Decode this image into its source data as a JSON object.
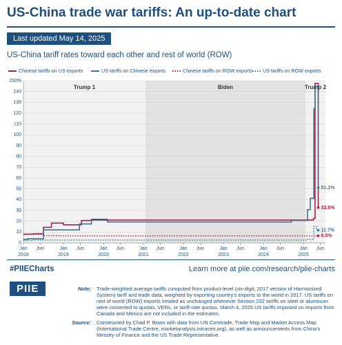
{
  "header": {
    "title": "US-China trade war tariffs: An up-to-date chart",
    "updated": "Last updated May 14, 2025"
  },
  "chart_data": {
    "type": "line",
    "step": true,
    "subtitle": "US-China tariff rates toward each other and rest of world (ROW)",
    "xlim": [
      2018,
      2025.55
    ],
    "ylim": [
      0,
      150
    ],
    "yticks": [
      0,
      10,
      20,
      30,
      40,
      50,
      60,
      70,
      80,
      90,
      100,
      110,
      120,
      130,
      140,
      {
        "value": 150,
        "label": "150%"
      }
    ],
    "xticks": [
      {
        "value": 2018,
        "label": "Jan"
      },
      {
        "value": 2018.42,
        "label": "Jun"
      },
      {
        "value": 2019,
        "label": "Jan"
      },
      {
        "value": 2019.42,
        "label": "Jun"
      },
      {
        "value": 2020,
        "label": "Jan"
      },
      {
        "value": 2020.42,
        "label": "Jun"
      },
      {
        "value": 2021,
        "label": "Jan"
      },
      {
        "value": 2021.42,
        "label": "Jun"
      },
      {
        "value": 2022,
        "label": "Jan"
      },
      {
        "value": 2022.42,
        "label": "Jun"
      },
      {
        "value": 2023,
        "label": "Jan"
      },
      {
        "value": 2023.42,
        "label": "Jun"
      },
      {
        "value": 2024,
        "label": "Jan"
      },
      {
        "value": 2024.42,
        "label": "Jun"
      },
      {
        "value": 2025,
        "label": "Jan"
      },
      {
        "value": 2025.42,
        "label": "Jun"
      }
    ],
    "xtick_years": [
      2018,
      2019,
      2020,
      2021,
      2022,
      2023,
      2024,
      2025
    ],
    "grid": true,
    "periods": [
      {
        "label": "Trump 1",
        "start": 2018,
        "end": 2021.05,
        "color": "#f2f2f2"
      },
      {
        "label": "Biden",
        "start": 2021.05,
        "end": 2025.05,
        "color": "#e2e2e2"
      },
      {
        "label": "Trump 2",
        "start": 2025.05,
        "end": 2025.55,
        "color": "#f2f2f2"
      }
    ],
    "series": [
      {
        "name": "Chinese tariffs on US exports",
        "color": "#a3214b",
        "dash": false,
        "x": [
          2018,
          2018.25,
          2018.25,
          2018.5,
          2018.5,
          2018.7,
          2018.7,
          2019.0,
          2019.0,
          2019.45,
          2019.45,
          2019.7,
          2019.7,
          2020.1,
          2020.1,
          2025.1,
          2025.1,
          2025.25,
          2025.25,
          2025.29,
          2025.29,
          2025.37,
          2025.37
        ],
        "values": [
          8.0,
          8.0,
          8.4,
          8.4,
          14.4,
          14.4,
          18.3,
          18.3,
          16.7,
          16.7,
          20.7,
          20.7,
          21.8,
          21.8,
          21.1,
          21.1,
          21.2,
          21.2,
          22.6,
          22.6,
          147.6,
          147.6,
          32.6
        ],
        "value_labels": [
          null,
          null,
          null,
          null,
          null,
          null,
          null,
          null,
          null,
          null,
          null,
          null,
          null,
          null,
          null,
          null,
          null,
          null,
          null,
          null,
          null,
          null,
          "32.6%"
        ]
      },
      {
        "name": "US tariffs on Chinese exports",
        "color": "#3b7690",
        "dash": false,
        "x": [
          2018,
          2018.1,
          2018.1,
          2018.5,
          2018.5,
          2019.4,
          2019.4,
          2019.7,
          2019.7,
          2020.1,
          2020.1,
          2024.7,
          2024.7,
          2025.1,
          2025.1,
          2025.17,
          2025.17,
          2025.26,
          2025.26,
          2025.29,
          2025.29,
          2025.37,
          2025.37
        ],
        "values": [
          3.1,
          3.1,
          3.8,
          3.8,
          12.0,
          12.0,
          17.5,
          17.5,
          21.0,
          21.0,
          19.3,
          19.3,
          20.8,
          20.8,
          30.8,
          30.8,
          41.2,
          41.2,
          124.1,
          124.1,
          145.0,
          145.0,
          51.1
        ],
        "value_labels": [
          null,
          null,
          null,
          null,
          null,
          null,
          null,
          null,
          null,
          null,
          null,
          null,
          null,
          null,
          null,
          null,
          null,
          null,
          null,
          null,
          null,
          null,
          "51.1%"
        ]
      },
      {
        "name": "Chinese tariffs on ROW exports",
        "color": "#a3214b",
        "dash": true,
        "x": [
          2018,
          2018.5,
          2018.5,
          2018.9,
          2018.9,
          2025.37
        ],
        "values": [
          8.0,
          8.0,
          6.7,
          6.7,
          6.5,
          6.5
        ],
        "value_labels": [
          null,
          null,
          null,
          null,
          null,
          "6.5%"
        ]
      },
      {
        "name": "US tariffs on ROW exports",
        "color": "#3b7690",
        "dash": true,
        "x": [
          2018,
          2018.2,
          2018.2,
          2025.1,
          2025.1,
          2025.26,
          2025.26,
          2025.33,
          2025.33,
          2025.37
        ],
        "values": [
          2.2,
          2.2,
          2.6,
          2.6,
          3.3,
          3.3,
          15.1,
          15.1,
          11.7,
          11.7
        ],
        "value_labels": [
          null,
          null,
          null,
          null,
          null,
          null,
          null,
          null,
          null,
          "11.7%"
        ]
      }
    ]
  },
  "footer": {
    "hashtag": "#PIIECharts",
    "link": "Learn more at piie.com/research/piie-charts",
    "logo": "PIIE",
    "note_label": "Note:",
    "note": "Trade-weighted average tariffs computed from product-level (six-digit, 2017 version of Harmonized System) tariff and trade data, weighted by exporting country's exports to the world in 2017. US tariffs on rest of world (ROW) exports treated as unchanged whenever Section 232 tariffs on steel or aluminum were converted to quotas, VERs, or tariff-rate quotas. March 4, 2025 US tariffs imposed on imports from Canada and Mexico are not included in the estimates.",
    "source_label": "Source:",
    "source": "Constructed by Chad P. Bown with data from UN Comtrade, Trade Map and Market Access Map (International Trade Centre, marketanalysis.intracen.org), as well as announcements from China's Ministry of Finance and the US Trade Representative."
  }
}
